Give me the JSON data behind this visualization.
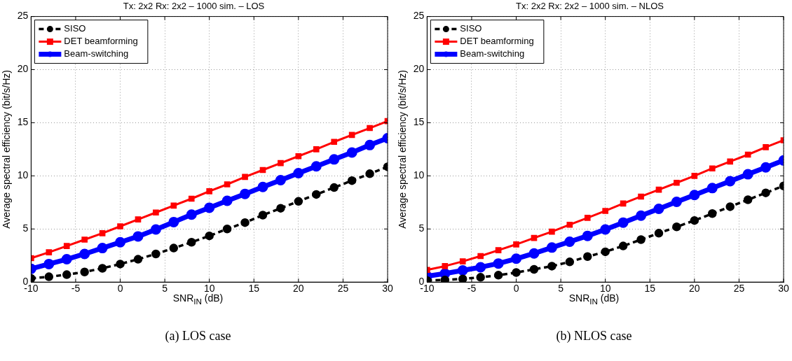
{
  "chart_data": [
    {
      "type": "line",
      "title": "Tx: 2x2 Rx: 2x2 – 1000 sim. – LOS",
      "xlabel": "SNR$_{IN}$ (dB)",
      "ylabel": "Average spectral efficiency (bit/s/Hz)",
      "x": [
        -10,
        -8,
        -6,
        -4,
        -2,
        0,
        2,
        4,
        6,
        8,
        10,
        12,
        14,
        16,
        18,
        20,
        22,
        24,
        26,
        28,
        30
      ],
      "series": [
        {
          "name": "SISO",
          "color": "#000000",
          "marker": "circle",
          "line_style": "dashed",
          "values": [
            0.35,
            0.5,
            0.7,
            0.95,
            1.3,
            1.7,
            2.15,
            2.65,
            3.2,
            3.75,
            4.35,
            5.0,
            5.6,
            6.3,
            6.95,
            7.6,
            8.25,
            8.9,
            9.55,
            10.2,
            10.85
          ]
        },
        {
          "name": "DET beamforming",
          "color": "#ff0000",
          "marker": "square",
          "line_style": "solid",
          "values": [
            2.25,
            2.8,
            3.4,
            4.0,
            4.6,
            5.25,
            5.9,
            6.55,
            7.2,
            7.85,
            8.55,
            9.2,
            9.9,
            10.55,
            11.2,
            11.85,
            12.5,
            13.2,
            13.85,
            14.5,
            15.15
          ]
        },
        {
          "name": "Beam-switching",
          "color": "#0000ff",
          "marker": "circle",
          "line_style": "solid",
          "values": [
            1.25,
            1.7,
            2.15,
            2.65,
            3.2,
            3.75,
            4.3,
            4.95,
            5.65,
            6.35,
            7.0,
            7.65,
            8.3,
            8.95,
            9.6,
            10.25,
            10.9,
            11.55,
            12.2,
            12.9,
            13.55
          ]
        }
      ],
      "xlim": [
        -10,
        30
      ],
      "xticks": [
        -10,
        -5,
        0,
        5,
        10,
        15,
        20,
        25,
        30
      ],
      "ylim": [
        0,
        25
      ],
      "yticks": [
        0,
        5,
        10,
        15,
        20,
        25
      ],
      "grid": true,
      "legend": "top left",
      "annotations": [
        "(a) LOS case"
      ]
    },
    {
      "type": "line",
      "title": "Tx: 2x2 Rx: 2x2 – 1000 sim. – NLOS",
      "xlabel": "SNR$_{IN}$ (dB)",
      "ylabel": "Average spectral efficiency (bit/s/Hz)",
      "x": [
        -10,
        -8,
        -6,
        -4,
        -2,
        0,
        2,
        4,
        6,
        8,
        10,
        12,
        14,
        16,
        18,
        20,
        22,
        24,
        26,
        28,
        30
      ],
      "series": [
        {
          "name": "SISO",
          "color": "#000000",
          "marker": "circle",
          "line_style": "dashed",
          "values": [
            0.15,
            0.2,
            0.3,
            0.45,
            0.65,
            0.9,
            1.2,
            1.5,
            1.9,
            2.4,
            2.85,
            3.4,
            4.0,
            4.6,
            5.2,
            5.8,
            6.45,
            7.1,
            7.75,
            8.4,
            9.05
          ]
        },
        {
          "name": "DET beamforming",
          "color": "#ff0000",
          "marker": "square",
          "line_style": "solid",
          "values": [
            1.15,
            1.5,
            1.95,
            2.45,
            3.0,
            3.55,
            4.15,
            4.75,
            5.4,
            6.05,
            6.7,
            7.4,
            8.05,
            8.7,
            9.35,
            10.0,
            10.7,
            11.35,
            12.0,
            12.7,
            13.35
          ]
        },
        {
          "name": "Beam-switching",
          "color": "#0000ff",
          "marker": "circle",
          "line_style": "solid",
          "values": [
            0.55,
            0.8,
            1.1,
            1.4,
            1.75,
            2.2,
            2.7,
            3.25,
            3.8,
            4.35,
            4.95,
            5.6,
            6.25,
            6.9,
            7.55,
            8.2,
            8.85,
            9.5,
            10.15,
            10.8,
            11.45
          ]
        }
      ],
      "xlim": [
        -10,
        30
      ],
      "xticks": [
        -10,
        -5,
        0,
        5,
        10,
        15,
        20,
        25,
        30
      ],
      "ylim": [
        0,
        25
      ],
      "yticks": [
        0,
        5,
        10,
        15,
        20,
        25
      ],
      "grid": true,
      "legend": "top left",
      "annotations": [
        "(b) NLOS case"
      ]
    }
  ]
}
